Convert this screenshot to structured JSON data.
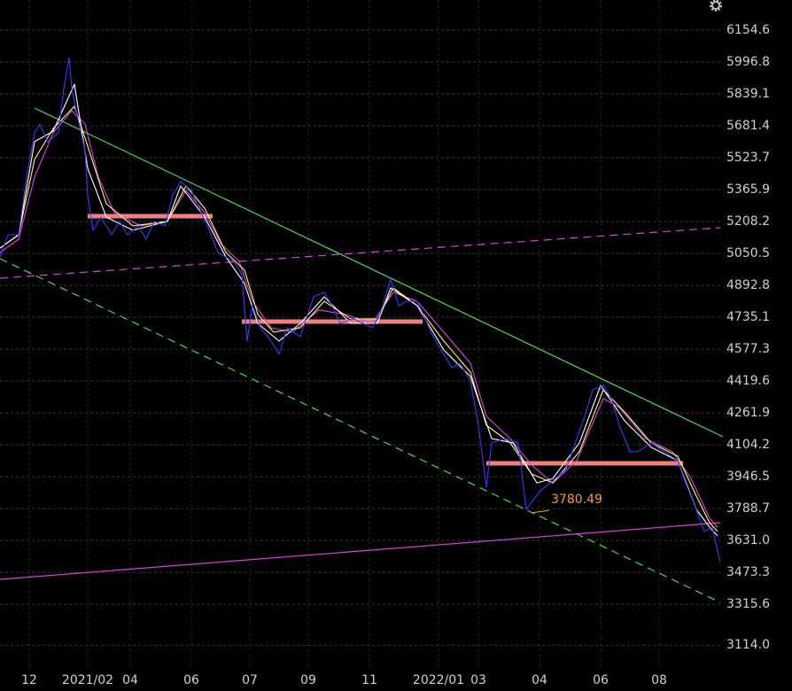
{
  "chart_data": {
    "type": "line",
    "xlim": [
      0,
      272
    ],
    "ylim": [
      2996.6,
      6303.5
    ],
    "grid": true,
    "xticks": [
      {
        "value": 11,
        "label": "12"
      },
      {
        "value": 33,
        "label": "2021/02"
      },
      {
        "value": 49,
        "label": "04"
      },
      {
        "value": 72,
        "label": "06"
      },
      {
        "value": 94,
        "label": "07"
      },
      {
        "value": 116,
        "label": "09"
      },
      {
        "value": 139,
        "label": "11"
      },
      {
        "value": 165,
        "label": "2022/01"
      },
      {
        "value": 180,
        "label": "03"
      },
      {
        "value": 203,
        "label": "04"
      },
      {
        "value": 226,
        "label": "06"
      },
      {
        "value": 248,
        "label": "08"
      }
    ],
    "yticks": [
      6154.6,
      5996.8,
      5839.1,
      5681.4,
      5523.7,
      5365.9,
      5208.2,
      5050.5,
      4892.8,
      4735.1,
      4577.3,
      4419.6,
      4261.9,
      4104.2,
      3946.5,
      3788.7,
      {
        "value": 3631.0,
        "label": "3631.0"
      },
      3473.3,
      3315.6,
      {
        "value": 3114.0,
        "label": "3114.0"
      }
    ],
    "series": [
      {
        "color": "#e040e0",
        "x": [
          0,
          7,
          13,
          20,
          27,
          32,
          37,
          43,
          53,
          63,
          70,
          77,
          83,
          90,
          95,
          102,
          110,
          120,
          130,
          140,
          148,
          157,
          167,
          177,
          183,
          192,
          200,
          208,
          217,
          227,
          233,
          243,
          253,
          260,
          267,
          270
        ],
        "values": [
          5055,
          5121,
          5428,
          5647,
          5756,
          5690,
          5428,
          5252,
          5187,
          5209,
          5362,
          5252,
          5099,
          5011,
          4814,
          4683,
          4661,
          4771,
          4749,
          4705,
          4858,
          4814,
          4661,
          4508,
          4245,
          4135,
          4004,
          3916,
          4026,
          4333,
          4289,
          4135,
          4070,
          3938,
          3741,
          3697
        ]
      },
      {
        "color": "#ffff66",
        "x": [
          0,
          7,
          13,
          20,
          28,
          33,
          40,
          50,
          63,
          70,
          77,
          85,
          92,
          97,
          103,
          113,
          122,
          132,
          142,
          148,
          157,
          167,
          177,
          183,
          192,
          200,
          208,
          218,
          227,
          235,
          245,
          255,
          262,
          267,
          270
        ],
        "values": [
          5077,
          5143,
          5515,
          5668,
          5778,
          5581,
          5296,
          5187,
          5209,
          5384,
          5274,
          5055,
          4968,
          4749,
          4661,
          4683,
          4814,
          4727,
          4727,
          4880,
          4792,
          4617,
          4464,
          4201,
          4114,
          3960,
          3916,
          4070,
          4376,
          4267,
          4114,
          4048,
          3851,
          3719,
          3676
        ]
      },
      {
        "color": "#ffffff",
        "x": [
          0,
          7,
          13,
          20,
          28,
          33,
          40,
          50,
          63,
          68,
          77,
          85,
          92,
          97,
          105,
          113,
          122,
          132,
          142,
          147,
          157,
          167,
          177,
          185,
          193,
          202,
          208,
          218,
          226,
          235,
          245,
          255,
          262,
          267,
          270
        ],
        "values": [
          5077,
          5143,
          5603,
          5655,
          5887,
          5471,
          5230,
          5165,
          5209,
          5384,
          5230,
          5033,
          4902,
          4705,
          4617,
          4705,
          4836,
          4705,
          4705,
          4880,
          4792,
          4573,
          4442,
          4135,
          4114,
          3916,
          3938,
          4114,
          4398,
          4223,
          4092,
          4026,
          3785,
          3697,
          3654
        ]
      },
      {
        "color": "#3a3aff",
        "x": [
          0,
          3,
          7,
          10,
          13,
          15,
          18,
          22,
          24,
          26,
          27,
          29,
          32,
          33,
          35,
          38,
          42,
          45,
          48,
          52,
          55,
          58,
          62,
          65,
          68,
          72,
          75,
          78,
          82,
          85,
          88,
          91,
          93,
          95,
          98,
          102,
          105,
          108,
          113,
          118,
          122,
          125,
          128,
          133,
          140,
          143,
          147,
          150,
          153,
          157,
          160,
          163,
          167,
          170,
          173,
          177,
          180,
          183,
          185,
          190,
          195,
          198,
          203,
          207,
          213,
          217,
          220,
          223,
          227,
          230,
          233,
          237,
          240,
          245,
          250,
          255,
          258,
          262,
          265,
          268,
          271
        ],
        "values": [
          5033,
          5143,
          5143,
          5428,
          5647,
          5690,
          5603,
          5647,
          5866,
          6019,
          5866,
          5734,
          5559,
          5340,
          5165,
          5230,
          5143,
          5209,
          5143,
          5187,
          5121,
          5209,
          5187,
          5340,
          5406,
          5362,
          5274,
          5187,
          5055,
          5033,
          5011,
          4946,
          4617,
          4792,
          4683,
          4617,
          4552,
          4683,
          4639,
          4836,
          4858,
          4792,
          4705,
          4727,
          4683,
          4749,
          4924,
          4792,
          4814,
          4814,
          4727,
          4639,
          4552,
          4486,
          4508,
          4420,
          4201,
          3895,
          4114,
          4135,
          4114,
          3785,
          3873,
          3916,
          3982,
          4135,
          4245,
          4376,
          4398,
          4333,
          4201,
          4070,
          4070,
          4114,
          4070,
          4026,
          3916,
          3785,
          3676,
          3697,
          3522
        ]
      }
    ],
    "trendlines": [
      {
        "color": "#4cd94c",
        "dashed": false,
        "x": [
          13,
          272
        ],
        "values": [
          5769.2,
          4144.2
        ]
      },
      {
        "color": "#4cd94c",
        "dashed": true,
        "x": [
          0,
          271
        ],
        "values": [
          5024.6,
          3325.1
        ]
      },
      {
        "color": "#e040e0",
        "dashed": true,
        "x": [
          0,
          271
        ],
        "values": [
          4928.2,
          5177.9
        ]
      },
      {
        "color": "#e040e0",
        "dashed": false,
        "x": [
          0,
          271
        ],
        "values": [
          3439.0,
          3719.3
        ]
      }
    ],
    "levels": [
      {
        "color": "#f08080",
        "x": [
          33,
          80
        ],
        "value": 5234.8
      },
      {
        "color": "#f08080",
        "x": [
          91,
          159
        ],
        "value": 4713.6
      },
      {
        "color": "#f08080",
        "x": [
          183,
          257
        ],
        "value": 4012.8
      }
    ],
    "annotations": [
      {
        "x": 200,
        "value": 3780.49,
        "color": "#f0a030"
      }
    ]
  }
}
